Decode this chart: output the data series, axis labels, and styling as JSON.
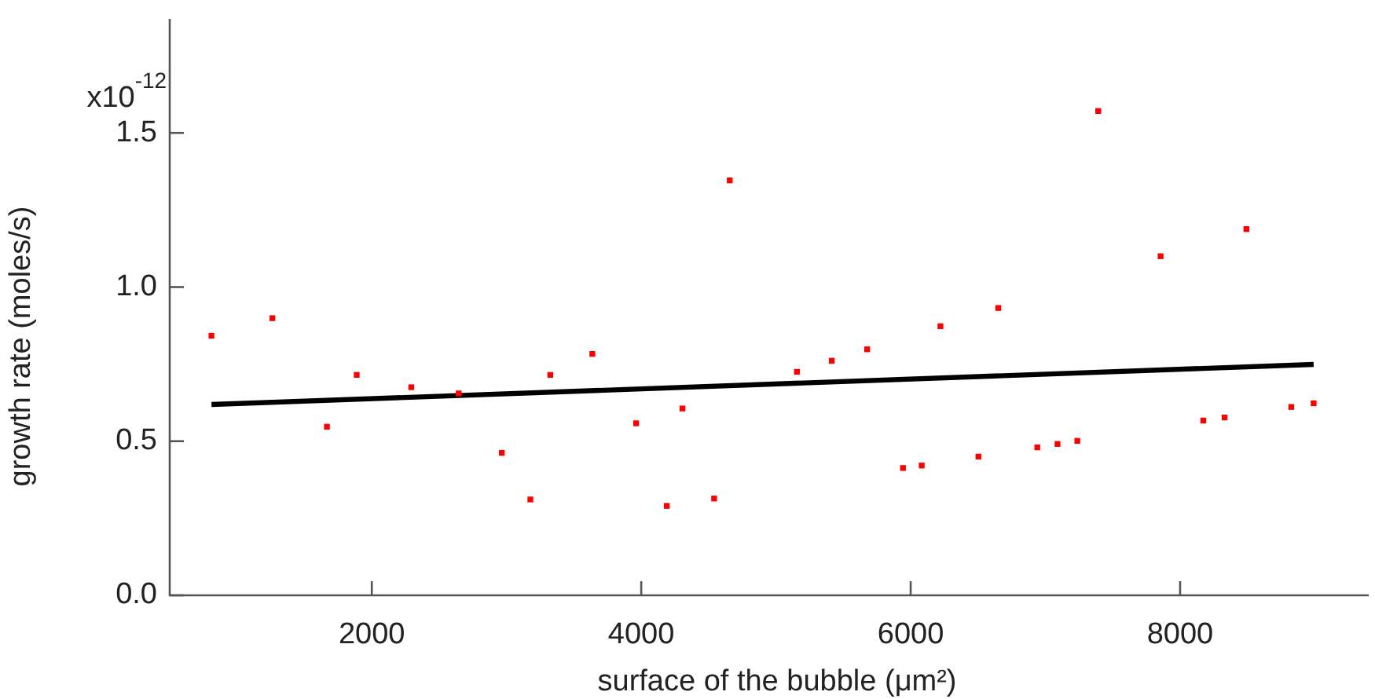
{
  "chart_data": {
    "type": "scatter",
    "xlabel": "surface of the bubble (μm²)",
    "ylabel": "growth rate (moles/s)",
    "xlim": [
      500,
      9400
    ],
    "xticks": [
      2000,
      4000,
      6000,
      8000
    ],
    "ylim": [
      0,
      1.87
    ],
    "yticks": [
      {
        "value": 0,
        "label": "0.0"
      },
      {
        "value": 0.5,
        "label": "0.5"
      },
      {
        "value": 1,
        "label": "1.0"
      },
      {
        "value": 1.5,
        "label": "1.5"
      }
    ],
    "annotations": [
      "x10$^{-12}$"
    ],
    "grid": false,
    "legend": false,
    "marker": "square",
    "series": [
      {
        "type": "scatter",
        "color": "#ff0000",
        "x": [
          810,
          1262,
          1667,
          1888,
          2293,
          2645,
          2965,
          3177,
          3325,
          3637,
          3962,
          4306,
          4190,
          4541,
          4657,
          5156,
          5414,
          5677,
          5943,
          6082,
          6221,
          6503,
          6650,
          6940,
          7090,
          7237,
          7392,
          7855,
          8172,
          8330,
          8492,
          8825,
          8991
        ],
        "values": [
          0.842,
          0.899,
          0.547,
          0.715,
          0.675,
          0.655,
          0.462,
          0.311,
          0.715,
          0.783,
          0.558,
          0.606,
          0.29,
          0.314,
          1.346,
          0.725,
          0.761,
          0.798,
          0.413,
          0.421,
          0.873,
          0.45,
          0.932,
          0.48,
          0.491,
          0.501,
          1.571,
          1.1,
          0.567,
          0.577,
          1.188,
          0.611,
          0.623
        ]
      },
      {
        "type": "line",
        "color": "#000000",
        "x": [
          810,
          8991
        ],
        "values": [
          0.619,
          0.749
        ],
        "line_style": "solid",
        "marker": "none"
      }
    ]
  }
}
